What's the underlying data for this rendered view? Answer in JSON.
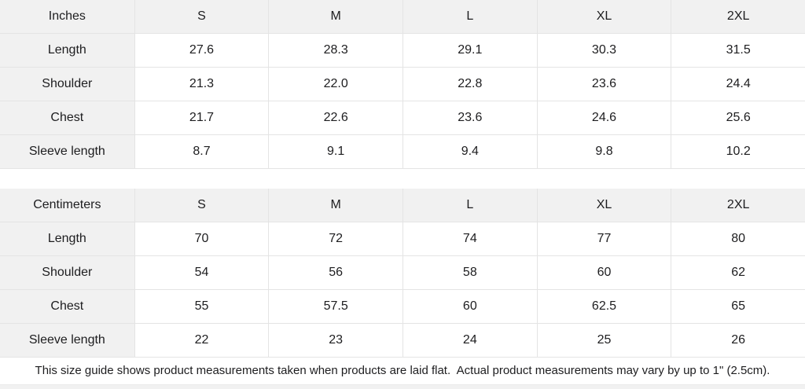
{
  "colors": {
    "shaded_bg": "#f1f1f1",
    "border": "#e4e4e4",
    "text": "#1d1d1f",
    "page_bg": "#ffffff"
  },
  "tables": [
    {
      "unit_label": "Inches",
      "columns": [
        "S",
        "M",
        "L",
        "XL",
        "2XL"
      ],
      "rows": [
        {
          "label": "Length",
          "values": [
            "27.6",
            "28.3",
            "29.1",
            "30.3",
            "31.5"
          ]
        },
        {
          "label": "Shoulder",
          "values": [
            "21.3",
            "22.0",
            "22.8",
            "23.6",
            "24.4"
          ]
        },
        {
          "label": "Chest",
          "values": [
            "21.7",
            "22.6",
            "23.6",
            "24.6",
            "25.6"
          ]
        },
        {
          "label": "Sleeve length",
          "values": [
            "8.7",
            "9.1",
            "9.4",
            "9.8",
            "10.2"
          ]
        }
      ]
    },
    {
      "unit_label": "Centimeters",
      "columns": [
        "S",
        "M",
        "L",
        "XL",
        "2XL"
      ],
      "rows": [
        {
          "label": "Length",
          "values": [
            "70",
            "72",
            "74",
            "77",
            "80"
          ]
        },
        {
          "label": "Shoulder",
          "values": [
            "54",
            "56",
            "58",
            "60",
            "62"
          ]
        },
        {
          "label": "Chest",
          "values": [
            "55",
            "57.5",
            "60",
            "62.5",
            "65"
          ]
        },
        {
          "label": "Sleeve length",
          "values": [
            "22",
            "23",
            "24",
            "25",
            "26"
          ]
        }
      ]
    }
  ],
  "footer": {
    "note": "This size guide shows product measurements taken when products are laid flat.  Actual product measurements may vary by up to 1\" (2.5cm)."
  }
}
